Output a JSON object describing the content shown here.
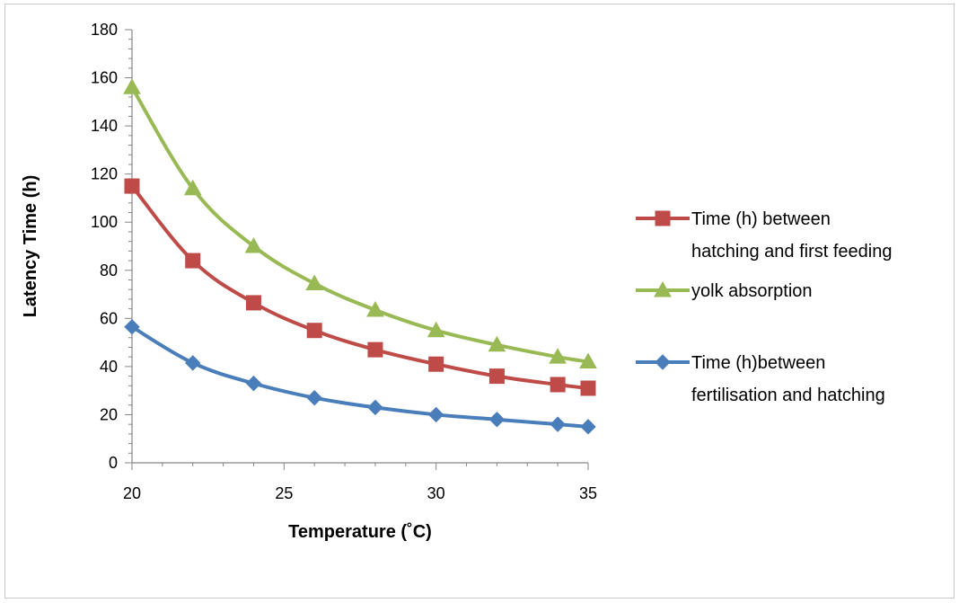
{
  "chart_data": {
    "type": "line",
    "xlabel": "Temperature (˚C)",
    "ylabel": "Latency Time (h)",
    "xlim": [
      20,
      35
    ],
    "ylim": [
      0,
      180
    ],
    "x_ticks": [
      20,
      25,
      30,
      35
    ],
    "y_ticks": [
      0,
      20,
      40,
      60,
      80,
      100,
      120,
      140,
      160,
      180
    ],
    "grid": false,
    "legend_position": "right",
    "x": [
      20,
      22,
      24,
      26,
      28,
      30,
      32,
      34,
      35
    ],
    "series": [
      {
        "key": "feeding",
        "name_lines": [
          "Time (h) between",
          "hatching and first feeding"
        ],
        "marker": "square",
        "color": "#be4b48",
        "values": [
          115,
          84,
          66.5,
          55,
          47,
          41,
          36,
          32.5,
          31
        ]
      },
      {
        "key": "yolk",
        "name_lines": [
          "yolk absorption"
        ],
        "marker": "triangle",
        "color": "#98b954",
        "values": [
          156,
          114,
          90,
          74.5,
          63.5,
          55,
          49,
          44,
          42
        ]
      },
      {
        "key": "hatching",
        "name_lines": [
          "Time (h)between",
          "fertilisation and hatching"
        ],
        "marker": "diamond",
        "color": "#4a7ebb",
        "values": [
          56.5,
          41.5,
          33,
          27,
          23,
          20,
          18,
          16,
          15
        ]
      }
    ]
  }
}
